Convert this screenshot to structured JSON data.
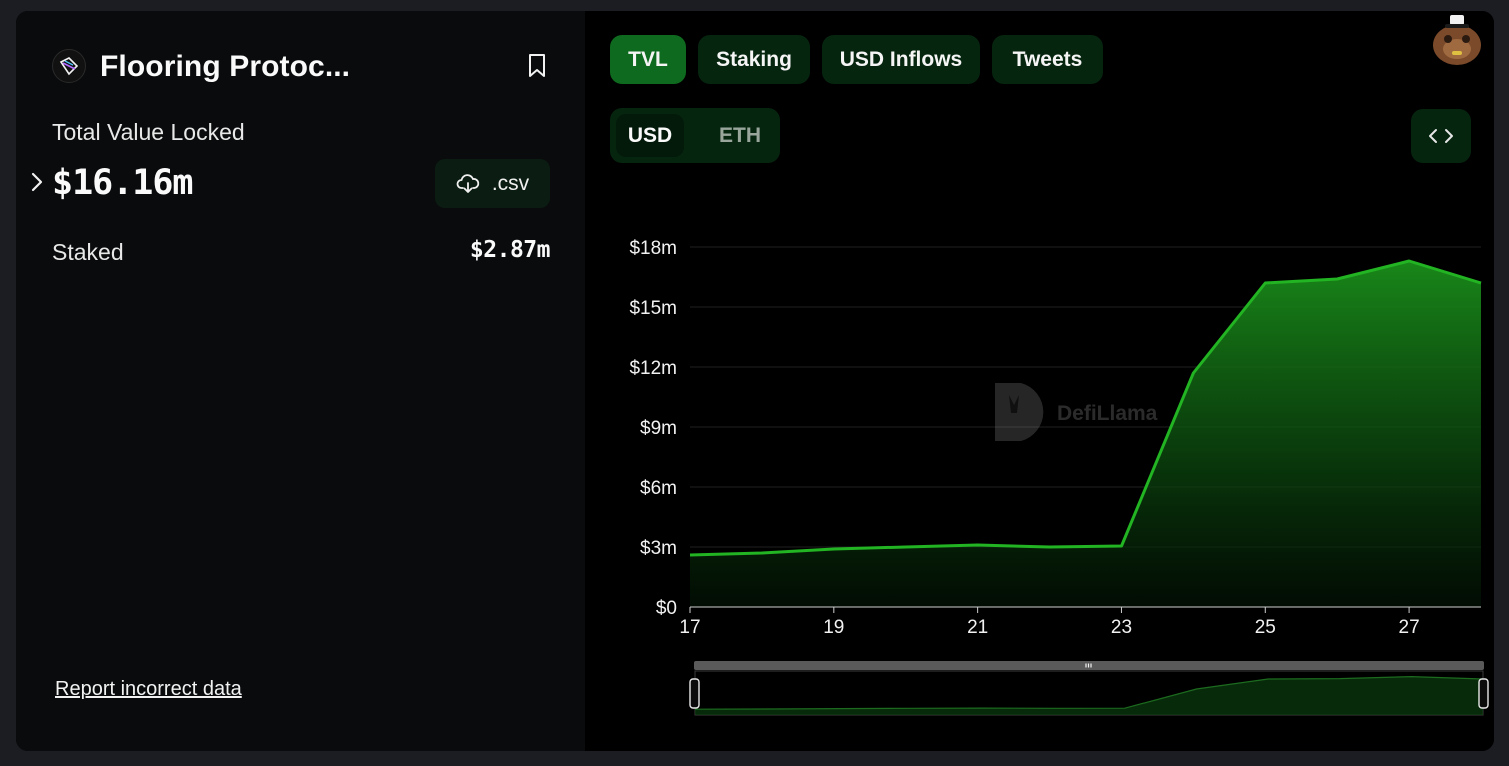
{
  "protocol": {
    "name": "Flooring Protoc...",
    "logo_icon": "flooring-protocol-logo",
    "bookmark_icon": "bookmark-icon"
  },
  "tvl": {
    "label": "Total Value Locked",
    "value": "$16.16m",
    "expand_icon": "chevron-right-icon",
    "csv_label": ".csv",
    "csv_icon": "cloud-download-icon"
  },
  "staked": {
    "label": "Staked",
    "value": "$2.87m"
  },
  "report_link": "Report incorrect data",
  "tabs": [
    {
      "label": "TVL",
      "active": true
    },
    {
      "label": "Staking",
      "active": false
    },
    {
      "label": "USD Inflows",
      "active": false
    },
    {
      "label": "Tweets",
      "active": false
    }
  ],
  "denomination": {
    "options": [
      "USD",
      "ETH"
    ],
    "selected": "USD"
  },
  "embed_icon": "code-brackets-icon",
  "watermark": "DefiLlama",
  "colors": {
    "line": "#22b422",
    "active_tab": "#0e6a1e",
    "inactive_tab": "#06250f"
  },
  "chart_data": {
    "type": "area",
    "x": [
      17,
      18,
      19,
      20,
      21,
      22,
      23,
      24,
      25,
      26,
      27,
      28
    ],
    "xticks": [
      "17",
      "19",
      "21",
      "23",
      "25",
      "27"
    ],
    "values": [
      2.6,
      2.7,
      2.9,
      3.0,
      3.1,
      3.0,
      3.05,
      11.7,
      16.2,
      16.4,
      17.3,
      16.2
    ],
    "yticks": [
      "$0",
      "$3m",
      "$6m",
      "$9m",
      "$12m",
      "$15m",
      "$18m"
    ],
    "ylim": [
      0,
      18
    ],
    "grid": true,
    "unit": "USD millions"
  }
}
